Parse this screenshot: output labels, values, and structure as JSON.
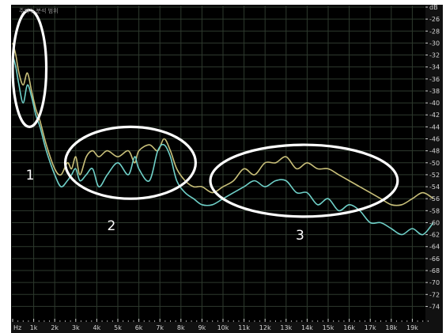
{
  "window_title": "주파수 분석 범위",
  "chart_data": {
    "type": "line",
    "xunit": "Hz",
    "yunit": "dB",
    "xlim": [
      0,
      20000
    ],
    "ylim": [
      -75,
      -24
    ],
    "grid": true,
    "x_ticks": [
      {
        "v": 0,
        "label": "Hz"
      },
      {
        "v": 1000,
        "label": "1k"
      },
      {
        "v": 2000,
        "label": "2k"
      },
      {
        "v": 3000,
        "label": "3k"
      },
      {
        "v": 4000,
        "label": "4k"
      },
      {
        "v": 5000,
        "label": "5k"
      },
      {
        "v": 6000,
        "label": "6k"
      },
      {
        "v": 7000,
        "label": "7k"
      },
      {
        "v": 8000,
        "label": "8k"
      },
      {
        "v": 9000,
        "label": "9k"
      },
      {
        "v": 10000,
        "label": "10k"
      },
      {
        "v": 11000,
        "label": "11k"
      },
      {
        "v": 12000,
        "label": "12k"
      },
      {
        "v": 13000,
        "label": "13k"
      },
      {
        "v": 14000,
        "label": "14k"
      },
      {
        "v": 15000,
        "label": "15k"
      },
      {
        "v": 16000,
        "label": "16k"
      },
      {
        "v": 17000,
        "label": "17k"
      },
      {
        "v": 18000,
        "label": "18k"
      },
      {
        "v": 19000,
        "label": "19k"
      }
    ],
    "y_ticks": [
      {
        "v": -24,
        "label": "dB"
      },
      {
        "v": -26,
        "label": "-26"
      },
      {
        "v": -28,
        "label": "-28"
      },
      {
        "v": -30,
        "label": "-30"
      },
      {
        "v": -32,
        "label": "-32"
      },
      {
        "v": -34,
        "label": "-34"
      },
      {
        "v": -36,
        "label": "-36"
      },
      {
        "v": -38,
        "label": "-38"
      },
      {
        "v": -40,
        "label": "-40"
      },
      {
        "v": -42,
        "label": "-42"
      },
      {
        "v": -44,
        "label": "-44"
      },
      {
        "v": -46,
        "label": "-46"
      },
      {
        "v": -48,
        "label": "-48"
      },
      {
        "v": -50,
        "label": "-50"
      },
      {
        "v": -52,
        "label": "-52"
      },
      {
        "v": -54,
        "label": "-54"
      },
      {
        "v": -56,
        "label": "-56"
      },
      {
        "v": -58,
        "label": "-58"
      },
      {
        "v": -60,
        "label": "-60"
      },
      {
        "v": -62,
        "label": "-62"
      },
      {
        "v": -64,
        "label": "-64"
      },
      {
        "v": -66,
        "label": "-66"
      },
      {
        "v": -68,
        "label": "-68"
      },
      {
        "v": -70,
        "label": "-70"
      },
      {
        "v": -72,
        "label": "-72"
      },
      {
        "v": -74,
        "label": "-74"
      }
    ],
    "series": [
      {
        "color": "#c9c07a",
        "x": [
          0,
          150,
          300,
          500,
          700,
          900,
          1100,
          1300,
          1600,
          2000,
          2300,
          2600,
          2800,
          3000,
          3200,
          3500,
          3800,
          4100,
          4500,
          5000,
          5500,
          5800,
          6000,
          6500,
          6900,
          7200,
          7500,
          7800,
          8200,
          8600,
          9000,
          9500,
          10000,
          10500,
          11000,
          11500,
          12000,
          12500,
          13000,
          13500,
          14000,
          14500,
          15000,
          15500,
          16000,
          16500,
          17000,
          17500,
          18000,
          18500,
          19000,
          19500,
          20000
        ],
        "y": [
          -30,
          -32,
          -35,
          -37,
          -35,
          -38,
          -41,
          -43,
          -47,
          -51,
          -52,
          -50,
          -51,
          -49,
          -52,
          -49,
          -48,
          -49,
          -48,
          -49,
          -48,
          -50,
          -48,
          -47,
          -48,
          -46,
          -48,
          -51,
          -53,
          -54,
          -54,
          -55,
          -54,
          -53,
          -51,
          -52,
          -50,
          -50,
          -49,
          -51,
          -50,
          -51,
          -51,
          -52,
          -53,
          -54,
          -55,
          -56,
          -57,
          -57,
          -56,
          -55,
          -56
        ]
      },
      {
        "color": "#6fd0c8",
        "x": [
          0,
          150,
          300,
          500,
          700,
          900,
          1100,
          1300,
          1600,
          2000,
          2300,
          2600,
          2800,
          3000,
          3200,
          3500,
          3800,
          4100,
          4500,
          5000,
          5500,
          5800,
          6000,
          6500,
          6900,
          7200,
          7500,
          7800,
          8200,
          8600,
          9000,
          9500,
          10000,
          10500,
          11000,
          11500,
          12000,
          12500,
          13000,
          13500,
          14000,
          14500,
          15000,
          15500,
          16000,
          16500,
          17000,
          17500,
          18000,
          18500,
          19000,
          19500,
          20000
        ],
        "y": [
          -32,
          -34,
          -37,
          -40,
          -37,
          -39,
          -42,
          -44,
          -48,
          -52,
          -54,
          -53,
          -52,
          -51,
          -53,
          -52,
          -51,
          -54,
          -52,
          -50,
          -52,
          -49,
          -51,
          -53,
          -48,
          -47,
          -49,
          -53,
          -55,
          -56,
          -57,
          -57,
          -56,
          -55,
          -54,
          -53,
          -54,
          -53,
          -53,
          -55,
          -55,
          -57,
          -56,
          -58,
          -57,
          -58,
          -60,
          -60,
          -61,
          -62,
          -61,
          -62,
          -60
        ]
      }
    ],
    "annotations": [
      {
        "label": "1",
        "x_range": [
          0,
          1600
        ],
        "y_range": [
          -44,
          -24.5
        ]
      },
      {
        "label": "2",
        "x_range": [
          2500,
          8700
        ],
        "y_range": [
          -56,
          -44
        ]
      },
      {
        "label": "3",
        "x_range": [
          9400,
          18300
        ],
        "y_range": [
          -59,
          -47
        ]
      }
    ]
  },
  "colors": {
    "background": "#000000",
    "grid": "#2e3a2e",
    "ellipse": "#ffffff",
    "axis_text": "#d8d8d8"
  }
}
